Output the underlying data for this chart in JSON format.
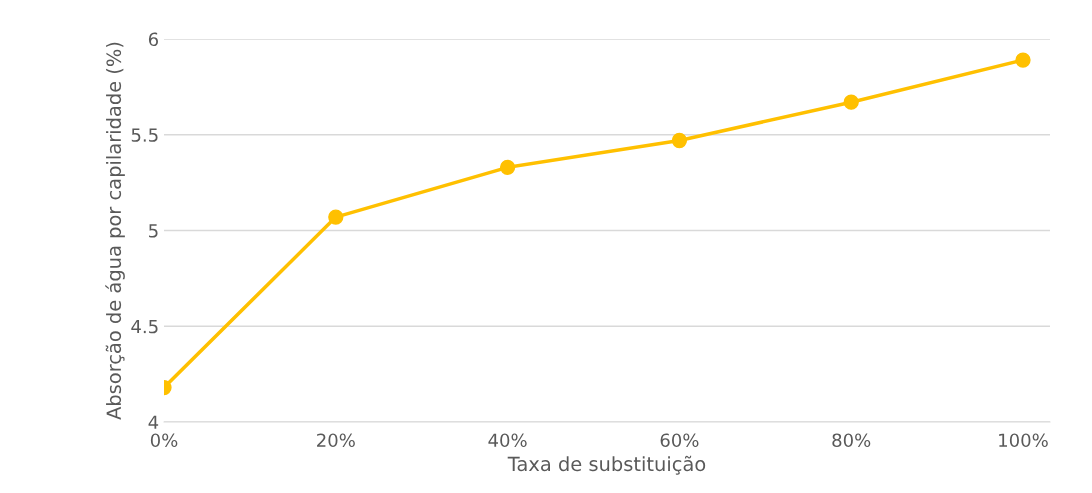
{
  "chart_data": {
    "type": "line",
    "xlabel": "Taxa de substituição",
    "ylabel": "Absorção de água por capilaridade (%)",
    "categories": [
      "0%",
      "20%",
      "40%",
      "60%",
      "80%",
      "100%"
    ],
    "series": [
      {
        "color": "#ffc000",
        "values": [
          4.18,
          5.07,
          5.33,
          5.47,
          5.67,
          5.89
        ]
      }
    ],
    "ylim": [
      4,
      6
    ],
    "yticks": [
      4,
      4.5,
      5,
      5.5,
      6
    ],
    "grid": "y",
    "marker": "circle",
    "line_style": "solid",
    "legend": false
  }
}
